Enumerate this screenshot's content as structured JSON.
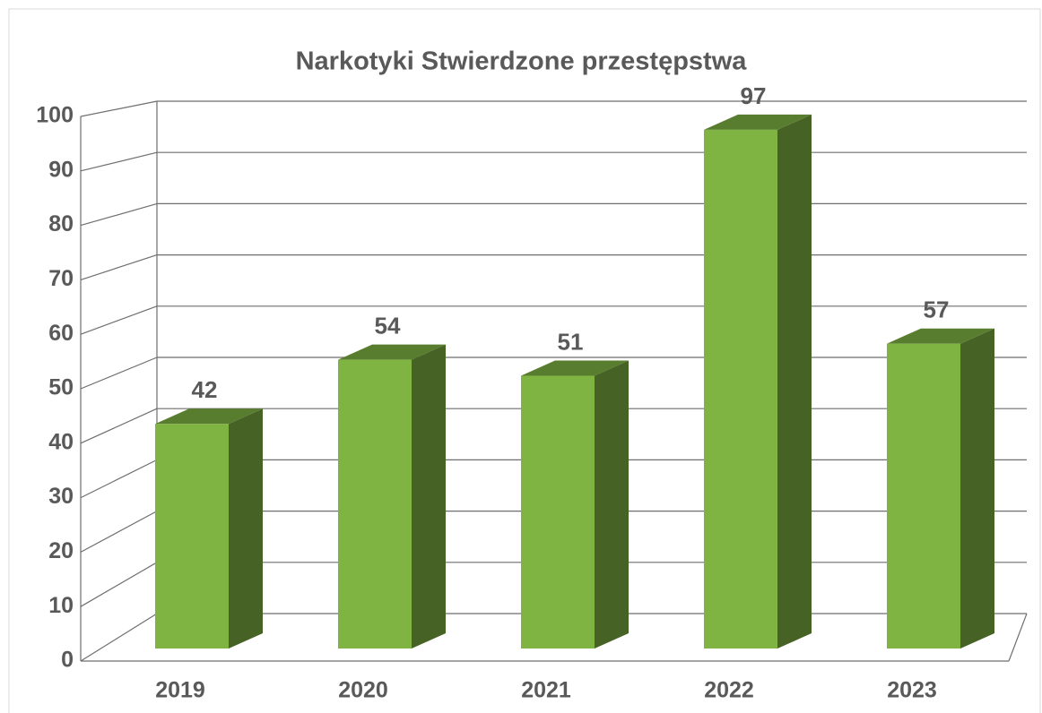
{
  "chart_data": {
    "type": "bar3d",
    "title": "Narkotyki Stwierdzone przestępstwa",
    "categories": [
      "2019",
      "2020",
      "2021",
      "2022",
      "2023"
    ],
    "values": [
      42,
      54,
      51,
      97,
      57
    ],
    "color": "#7fb342",
    "ylim": [
      0,
      100
    ],
    "yticks": [
      0,
      10,
      20,
      30,
      40,
      50,
      60,
      70,
      80,
      90,
      100
    ],
    "grid": true
  }
}
